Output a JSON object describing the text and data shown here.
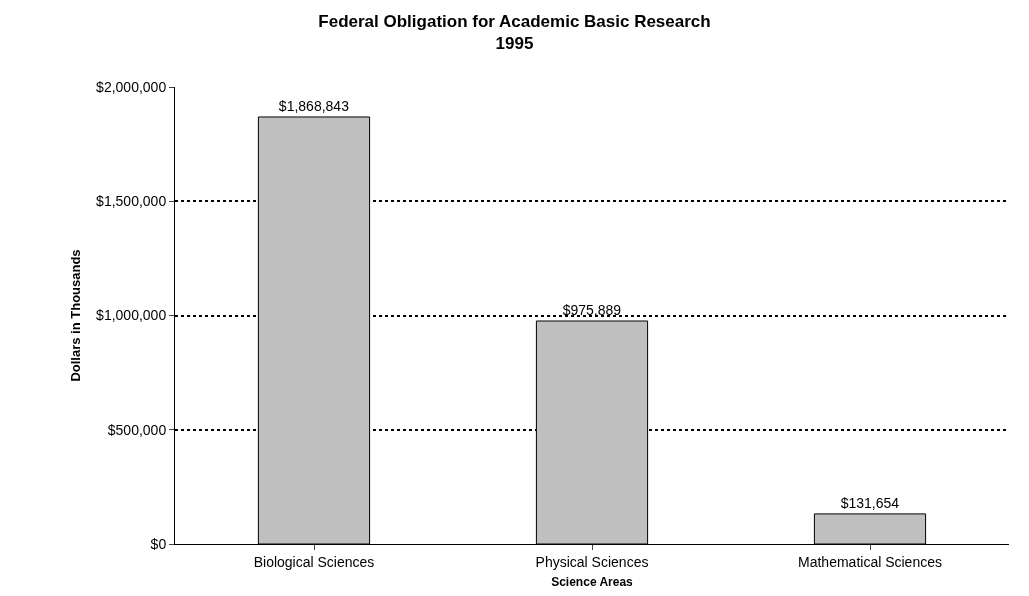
{
  "chart_data": {
    "type": "bar",
    "title": "Federal Obligation for Academic Basic Research\n1995",
    "xlabel": "Science Areas",
    "ylabel": "Dollars in Thousands",
    "categories": [
      "Biological Sciences",
      "Physical Sciences",
      "Mathematical Sciences"
    ],
    "values": [
      1868843,
      975889,
      131654
    ],
    "color": "#c0c0c0",
    "value_labels": [
      "$1,868,843",
      "$975,889",
      "$131,654"
    ],
    "ylim": [
      0,
      2000000
    ],
    "yticks": [
      {
        "value": 0,
        "label": "$0"
      },
      {
        "value": 500000,
        "label": "$500,000"
      },
      {
        "value": 1000000,
        "label": "$1,000,000"
      },
      {
        "value": 1500000,
        "label": "$1,500,000"
      },
      {
        "value": 2000000,
        "label": "$2,000,000"
      }
    ],
    "grid": "y",
    "legend": false
  }
}
